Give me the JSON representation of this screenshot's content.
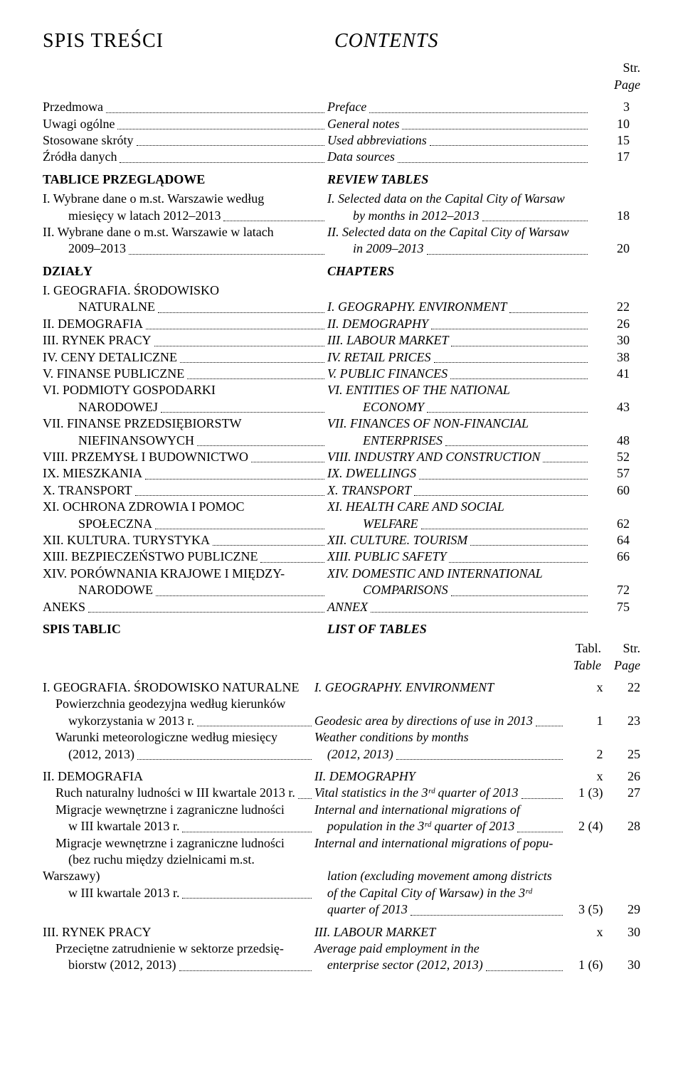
{
  "titles": {
    "left": "SPIS TREŚCI",
    "right": "CONTENTS"
  },
  "page_header": {
    "str": "Str.",
    "page": "Page"
  },
  "intro": [
    {
      "pl": "Przedmowa",
      "en": "Preface",
      "page": "3"
    },
    {
      "pl": "Uwagi ogólne",
      "en": "General notes",
      "page": "10"
    },
    {
      "pl": "Stosowane skróty",
      "en": "Used abbreviations",
      "page": "15"
    },
    {
      "pl": "Źródła danych",
      "en": "Data sources",
      "page": "17"
    }
  ],
  "review": {
    "head_pl": "TABLICE PRZEGLĄDOWE",
    "head_en": "REVIEW TABLES",
    "items": [
      {
        "pl1": "I. Wybrane dane o m.st. Warszawie według",
        "en1": "I. Selected data on the Capital City of Warsaw",
        "pl2": "miesięcy w latach 2012–2013",
        "en2": "by months in 2012–2013",
        "page": "18"
      },
      {
        "pl1": "II. Wybrane dane o m.st. Warszawie w latach",
        "en1": "II. Selected data on the Capital City of Warsaw",
        "pl2": "2009–2013",
        "en2": "in 2009–2013",
        "page": "20"
      }
    ]
  },
  "chapters_head": {
    "pl": "DZIAŁY",
    "en": "CHAPTERS"
  },
  "chapters": [
    {
      "pl1": "I.   GEOGRAFIA. ŚRODOWISKO",
      "en1": "",
      "pl2": "NATURALNE",
      "en2": "I.   GEOGRAPHY. ENVIRONMENT",
      "page": "22",
      "two": true
    },
    {
      "pl": "II.  DEMOGRAFIA",
      "en": "II.  DEMOGRAPHY",
      "page": "26"
    },
    {
      "pl": "III. RYNEK PRACY",
      "en": "III. LABOUR MARKET",
      "page": "30"
    },
    {
      "pl": "IV.  CENY DETALICZNE",
      "en": "IV.  RETAIL PRICES",
      "page": "38"
    },
    {
      "pl": "V.   FINANSE PUBLICZNE",
      "en": "V.   PUBLIC FINANCES",
      "page": "41"
    },
    {
      "pl1": "VI.  PODMIOTY GOSPODARKI",
      "en1": "VI.  ENTITIES OF THE NATIONAL",
      "pl2": "NARODOWEJ",
      "en2": "ECONOMY",
      "page": "43",
      "two": true
    },
    {
      "pl1": "VII. FINANSE PRZEDSIĘBIORSTW",
      "en1": "VII. FINANCES OF NON-FINANCIAL",
      "pl2": "NIEFINANSOWYCH",
      "en2": "ENTERPRISES",
      "page": "48",
      "two": true
    },
    {
      "pl": "VIII. PRZEMYSŁ I BUDOWNICTWO",
      "en": "VIII. INDUSTRY AND CONSTRUCTION",
      "page": "52"
    },
    {
      "pl": "IX.  MIESZKANIA",
      "en": "IX.  DWELLINGS",
      "page": "57"
    },
    {
      "pl": "X.   TRANSPORT",
      "en": "X.   TRANSPORT",
      "page": "60"
    },
    {
      "pl1": "XI.  OCHRONA ZDROWIA I POMOC",
      "en1": "XI.  HEALTH CARE AND SOCIAL",
      "pl2": "SPOŁECZNA",
      "en2": "WELFARE",
      "page": "62",
      "two": true
    },
    {
      "pl": "XII. KULTURA. TURYSTYKA",
      "en": "XII. CULTURE. TOURISM",
      "page": "64"
    },
    {
      "pl": "XIII. BEZPIECZEŃSTWO PUBLICZNE",
      "en": "XIII. PUBLIC SAFETY",
      "page": "66"
    },
    {
      "pl1": "XIV. PORÓWNANIA KRAJOWE I MIĘDZY-",
      "en1": "XIV. DOMESTIC AND INTERNATIONAL",
      "pl2": "NARODOWE",
      "en2": "COMPARISONS",
      "page": "72",
      "two": true
    },
    {
      "pl": "ANEKS",
      "en": "ANNEX",
      "page": "75"
    }
  ],
  "spis": {
    "pl": "SPIS TABLIC",
    "en": "LIST OF TABLES"
  },
  "tabl_header": {
    "tabl": "Tabl.",
    "table": "Table",
    "str": "Str.",
    "page": "Page"
  },
  "sections": [
    {
      "head_pl": "I. GEOGRAFIA. ŚRODOWISKO NATURALNE",
      "head_en": "I. GEOGRAPHY. ENVIRONMENT",
      "tabl": "x",
      "page": "22",
      "rows": [
        {
          "pl1": "Powierzchnia geodezyjna według kierunków",
          "pl2": "wykorzystania w 2013 r.",
          "en1": "",
          "en2": "Geodesic area by directions of use in 2013",
          "tabl": "1",
          "page": "23"
        },
        {
          "pl1": "Warunki meteorologiczne według miesięcy",
          "pl2": "(2012, 2013)",
          "en1": "Weather conditions by months",
          "en2": "(2012, 2013)",
          "tabl": "2",
          "page": "25"
        }
      ]
    },
    {
      "head_pl": "II. DEMOGRAFIA",
      "head_en": "II. DEMOGRAPHY",
      "tabl": "x",
      "page": "26",
      "rows": [
        {
          "pl1": "Ruch naturalny ludności w III kwartale 2013 r.",
          "pl2": "",
          "en1": "Vital statistics in the 3ʳᵈ quarter of 2013",
          "en2": "",
          "tabl": "1 (3)",
          "page": "27",
          "single": true
        },
        {
          "pl1": "Migracje wewnętrzne i zagraniczne ludności",
          "pl2": "w III kwartale 2013 r.",
          "en1": "Internal and international migrations of",
          "en2": "population in the 3ʳᵈ quarter of 2013",
          "tabl": "2 (4)",
          "page": "28"
        },
        {
          "pl1": "Migracje wewnętrzne i zagraniczne ludności",
          "pl2": "(bez ruchu między dzielnicami m.st. Warszawy)",
          "pl3": "w III kwartale 2013 r.",
          "en1": "Internal and international migrations of popu-",
          "en2": "lation (excluding movement among districts",
          "en3": "of the Capital City of Warsaw) in the 3ʳᵈ",
          "en4": "quarter of 2013",
          "tabl": "3 (5)",
          "page": "29",
          "multi": true
        }
      ]
    },
    {
      "head_pl": "III. RYNEK PRACY",
      "head_en": "III. LABOUR MARKET",
      "tabl": "x",
      "page": "30",
      "rows": [
        {
          "pl1": "Przeciętne zatrudnienie w sektorze przedsię-",
          "pl2": "biorstw (2012, 2013)",
          "en1": "Average paid employment in the",
          "en2": "enterprise sector (2012, 2013)",
          "tabl": "1 (6)",
          "page": "30"
        }
      ]
    }
  ]
}
